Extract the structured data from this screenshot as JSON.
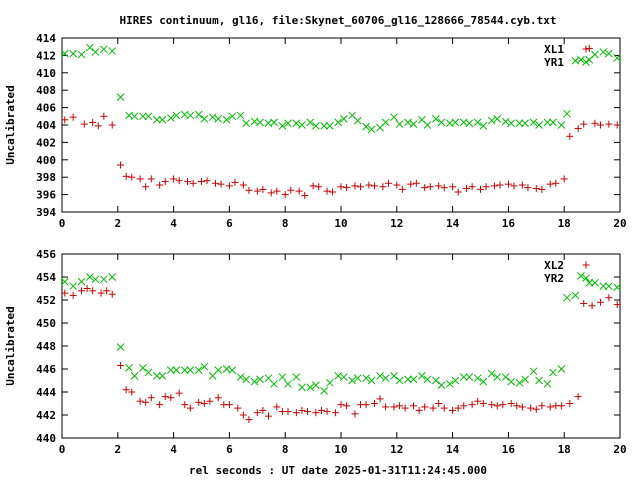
{
  "title": "HIRES continuum, gl16, file:Skynet_60706_gl16_128666_78544.cyb.txt",
  "xlabel": "rel seconds : UT date 2025-01-31T11:24:45.000",
  "colors": {
    "red": "#cc0000",
    "green": "#00bb00",
    "frame": "#000000"
  },
  "chart_data": [
    {
      "type": "scatter",
      "ylabel": "Uncalibrated",
      "xlim": [
        0,
        20
      ],
      "ylim": [
        394,
        414
      ],
      "xticks": [
        0,
        2,
        4,
        6,
        8,
        10,
        12,
        14,
        16,
        18,
        20
      ],
      "yticks": [
        394,
        396,
        398,
        400,
        402,
        404,
        406,
        408,
        410,
        412,
        414
      ],
      "legend_position": "top-right",
      "series": [
        {
          "name": "XL1",
          "marker": "plus",
          "color": "#cc0000",
          "x": [
            0.1,
            0.4,
            0.8,
            1.1,
            1.3,
            1.5,
            1.8,
            2.1,
            2.3,
            2.5,
            2.8,
            3.0,
            3.2,
            3.5,
            3.7,
            4.0,
            4.2,
            4.5,
            4.7,
            5.0,
            5.2,
            5.5,
            5.7,
            6.0,
            6.2,
            6.5,
            6.7,
            7.0,
            7.2,
            7.5,
            7.7,
            8.0,
            8.2,
            8.5,
            8.7,
            9.0,
            9.2,
            9.5,
            9.7,
            10.0,
            10.2,
            10.5,
            10.7,
            11.0,
            11.2,
            11.5,
            11.7,
            12.0,
            12.2,
            12.5,
            12.7,
            13.0,
            13.2,
            13.5,
            13.7,
            14.0,
            14.2,
            14.5,
            14.7,
            15.0,
            15.2,
            15.5,
            15.7,
            16.0,
            16.2,
            16.5,
            16.7,
            17.0,
            17.2,
            17.5,
            17.7,
            18.0,
            18.2,
            18.5,
            18.7,
            18.9,
            19.1,
            19.3,
            19.6,
            19.9
          ],
          "y": [
            404.6,
            404.9,
            404.1,
            404.3,
            403.9,
            405.0,
            404.0,
            399.4,
            398.1,
            398.0,
            397.8,
            396.9,
            397.8,
            397.1,
            397.5,
            397.8,
            397.6,
            397.5,
            397.3,
            397.5,
            397.6,
            397.3,
            397.2,
            397.0,
            397.4,
            397.1,
            396.5,
            396.4,
            396.6,
            396.2,
            396.4,
            396.0,
            396.5,
            396.4,
            395.9,
            397.0,
            396.9,
            396.4,
            396.3,
            396.9,
            396.8,
            397.0,
            396.9,
            397.1,
            397.0,
            396.9,
            397.3,
            397.1,
            396.6,
            397.2,
            397.3,
            396.8,
            396.9,
            397.0,
            396.8,
            396.9,
            396.3,
            396.7,
            396.9,
            396.6,
            396.9,
            397.0,
            397.1,
            397.2,
            397.0,
            397.1,
            396.8,
            396.7,
            396.6,
            397.2,
            397.3,
            397.8,
            402.7,
            403.6,
            404.1,
            412.8,
            404.2,
            404.0,
            404.1,
            404.0
          ]
        },
        {
          "name": "YR1",
          "marker": "cross",
          "color": "#00bb00",
          "x": [
            0.1,
            0.4,
            0.7,
            1.0,
            1.2,
            1.5,
            1.8,
            2.1,
            2.4,
            2.6,
            2.9,
            3.1,
            3.4,
            3.6,
            3.9,
            4.1,
            4.4,
            4.6,
            4.9,
            5.1,
            5.4,
            5.6,
            5.9,
            6.1,
            6.4,
            6.6,
            6.9,
            7.1,
            7.4,
            7.6,
            7.9,
            8.1,
            8.4,
            8.6,
            8.9,
            9.1,
            9.4,
            9.6,
            9.9,
            10.1,
            10.4,
            10.6,
            10.9,
            11.1,
            11.4,
            11.6,
            11.9,
            12.1,
            12.4,
            12.6,
            12.9,
            13.1,
            13.4,
            13.6,
            13.9,
            14.1,
            14.4,
            14.6,
            14.9,
            15.1,
            15.4,
            15.6,
            15.9,
            16.1,
            16.4,
            16.6,
            16.9,
            17.1,
            17.4,
            17.6,
            17.9,
            18.1,
            18.4,
            18.6,
            18.9,
            19.1,
            19.4,
            19.6,
            19.9
          ],
          "y": [
            412.2,
            412.2,
            412.1,
            412.9,
            412.4,
            412.7,
            412.5,
            407.2,
            405.1,
            405.0,
            405.0,
            405.0,
            404.6,
            404.6,
            404.8,
            405.1,
            405.2,
            405.1,
            405.2,
            404.7,
            404.9,
            404.7,
            404.6,
            405.0,
            405.1,
            404.2,
            404.4,
            404.3,
            404.2,
            404.3,
            403.9,
            404.2,
            404.2,
            404.0,
            404.3,
            403.9,
            403.9,
            403.9,
            404.3,
            404.7,
            405.1,
            404.5,
            403.8,
            403.5,
            403.7,
            404.3,
            404.9,
            404.1,
            404.3,
            404.1,
            404.6,
            404.0,
            404.7,
            404.3,
            404.2,
            404.3,
            404.3,
            404.2,
            404.3,
            403.9,
            404.5,
            404.7,
            404.4,
            404.2,
            404.2,
            404.2,
            404.3,
            404.0,
            404.3,
            404.3,
            404.0,
            405.3,
            411.4,
            411.5,
            411.5,
            412.1,
            412.4,
            412.2,
            411.7
          ]
        }
      ]
    },
    {
      "type": "scatter",
      "ylabel": "Uncalibrated",
      "xlim": [
        0,
        20
      ],
      "ylim": [
        440,
        456
      ],
      "xticks": [
        0,
        2,
        4,
        6,
        8,
        10,
        12,
        14,
        16,
        18,
        20
      ],
      "yticks": [
        440,
        442,
        444,
        446,
        448,
        450,
        452,
        454,
        456
      ],
      "legend_position": "top-right",
      "series": [
        {
          "name": "XL2",
          "marker": "plus",
          "color": "#cc0000",
          "x": [
            0.1,
            0.4,
            0.7,
            0.9,
            1.1,
            1.4,
            1.6,
            1.8,
            2.1,
            2.3,
            2.5,
            2.8,
            3.0,
            3.2,
            3.5,
            3.7,
            3.9,
            4.2,
            4.4,
            4.6,
            4.9,
            5.1,
            5.3,
            5.6,
            5.8,
            6.0,
            6.3,
            6.5,
            6.7,
            7.0,
            7.2,
            7.4,
            7.7,
            7.9,
            8.1,
            8.4,
            8.6,
            8.8,
            9.1,
            9.3,
            9.5,
            9.8,
            10.0,
            10.2,
            10.5,
            10.7,
            10.9,
            11.2,
            11.4,
            11.6,
            11.9,
            12.1,
            12.3,
            12.6,
            12.8,
            13.0,
            13.3,
            13.5,
            13.7,
            14.0,
            14.2,
            14.4,
            14.7,
            14.9,
            15.1,
            15.4,
            15.6,
            15.8,
            16.1,
            16.3,
            16.5,
            16.8,
            17.0,
            17.2,
            17.5,
            17.7,
            17.9,
            18.2,
            18.5,
            18.7,
            19.0,
            19.3,
            19.6,
            19.9
          ],
          "y": [
            452.6,
            452.4,
            452.8,
            453.0,
            452.8,
            452.6,
            452.8,
            452.5,
            446.3,
            444.2,
            444.0,
            443.2,
            443.1,
            443.5,
            442.9,
            443.6,
            443.5,
            443.9,
            442.9,
            442.6,
            443.1,
            443.0,
            443.2,
            443.5,
            442.9,
            442.9,
            442.6,
            442.0,
            441.6,
            442.2,
            442.4,
            441.9,
            442.7,
            442.3,
            442.3,
            442.2,
            442.4,
            442.3,
            442.2,
            442.4,
            442.3,
            442.2,
            442.9,
            442.8,
            442.1,
            442.9,
            442.9,
            443.0,
            443.4,
            442.7,
            442.7,
            442.8,
            442.6,
            442.8,
            442.4,
            442.7,
            442.6,
            443.0,
            442.6,
            442.4,
            442.6,
            442.8,
            442.9,
            443.2,
            443.0,
            442.9,
            442.8,
            442.9,
            443.0,
            442.8,
            442.7,
            442.6,
            442.5,
            442.8,
            442.7,
            442.8,
            442.8,
            443.0,
            443.6,
            451.7,
            451.5,
            451.8,
            452.2,
            451.6
          ]
        },
        {
          "name": "YR2",
          "marker": "cross",
          "color": "#00bb00",
          "x": [
            0.1,
            0.4,
            0.7,
            1.0,
            1.2,
            1.5,
            1.8,
            2.1,
            2.4,
            2.6,
            2.9,
            3.1,
            3.4,
            3.6,
            3.9,
            4.1,
            4.4,
            4.6,
            4.9,
            5.1,
            5.4,
            5.6,
            5.9,
            6.1,
            6.4,
            6.6,
            6.9,
            7.1,
            7.4,
            7.6,
            7.9,
            8.1,
            8.4,
            8.6,
            8.9,
            9.1,
            9.4,
            9.6,
            9.9,
            10.1,
            10.4,
            10.6,
            10.9,
            11.1,
            11.4,
            11.6,
            11.9,
            12.1,
            12.4,
            12.6,
            12.9,
            13.1,
            13.4,
            13.6,
            13.9,
            14.1,
            14.4,
            14.6,
            14.9,
            15.1,
            15.4,
            15.6,
            15.9,
            16.1,
            16.4,
            16.6,
            16.9,
            17.1,
            17.4,
            17.6,
            17.9,
            18.1,
            18.4,
            18.6,
            18.9,
            19.1,
            19.4,
            19.6,
            19.9
          ],
          "y": [
            453.6,
            453.2,
            453.6,
            454.0,
            453.8,
            453.8,
            454.0,
            447.9,
            446.1,
            445.4,
            446.1,
            445.7,
            445.4,
            445.4,
            445.9,
            445.9,
            445.9,
            445.9,
            445.9,
            446.2,
            445.4,
            445.9,
            446.0,
            445.9,
            445.3,
            445.1,
            444.9,
            445.1,
            445.2,
            444.7,
            445.3,
            444.7,
            445.3,
            444.4,
            444.4,
            444.6,
            444.1,
            444.8,
            445.4,
            445.3,
            445.0,
            445.2,
            445.2,
            445.0,
            445.4,
            445.2,
            445.4,
            445.0,
            445.1,
            445.1,
            445.4,
            445.1,
            445.0,
            444.6,
            444.7,
            445.0,
            445.3,
            445.3,
            445.2,
            444.9,
            445.6,
            445.3,
            445.3,
            444.9,
            444.8,
            445.1,
            445.8,
            445.0,
            444.7,
            445.7,
            446.0,
            452.2,
            452.4,
            454.1,
            453.5,
            453.5,
            453.2,
            453.2,
            453.1
          ]
        }
      ]
    }
  ]
}
